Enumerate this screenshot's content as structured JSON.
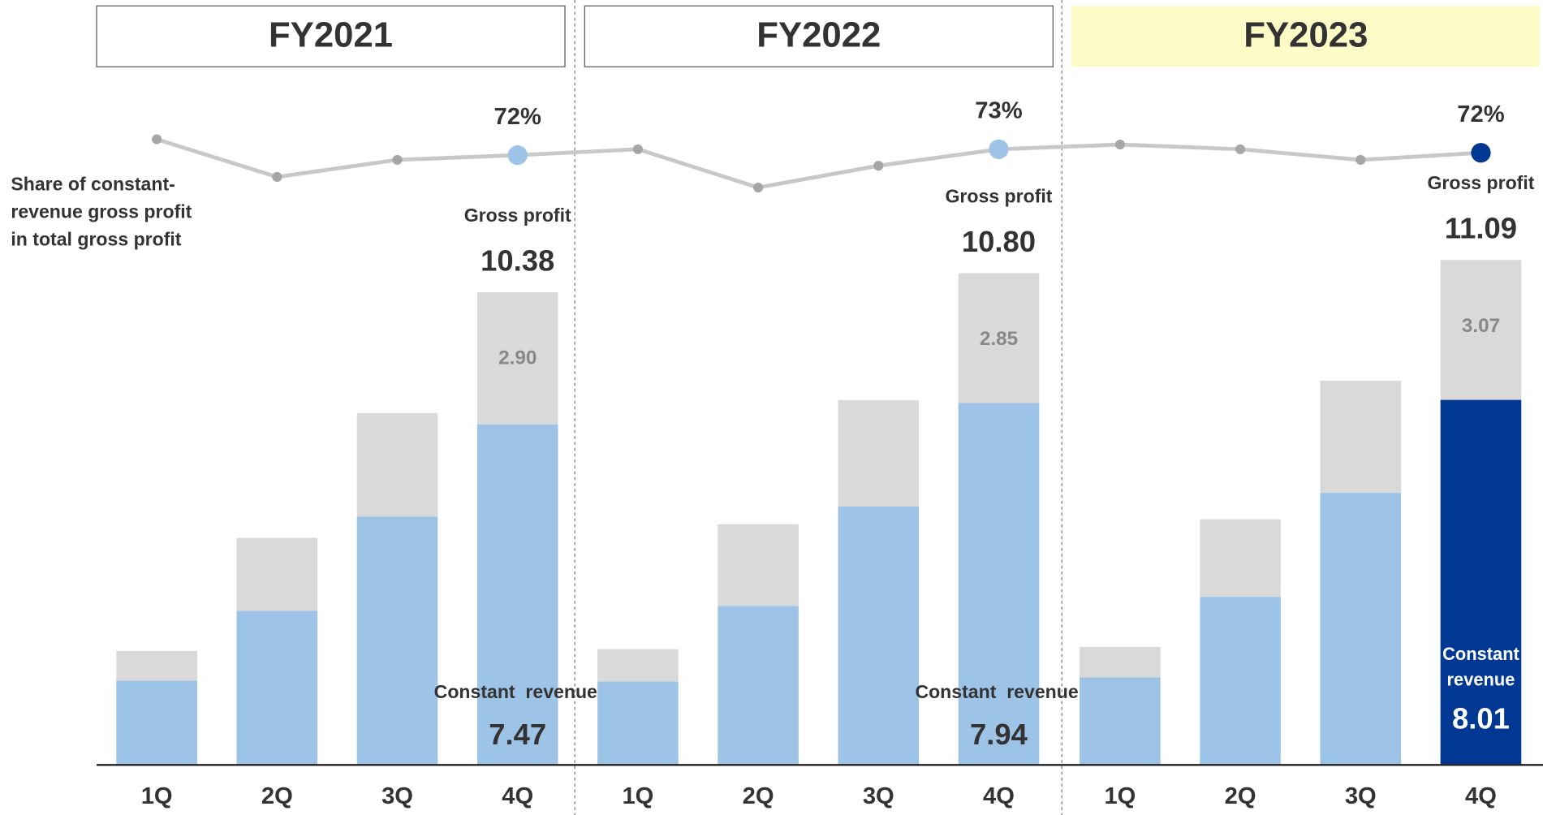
{
  "chart_data": {
    "type": "bar",
    "stacked": true,
    "groups": [
      "FY2021",
      "FY2022",
      "FY2023"
    ],
    "highlight_group": 2,
    "highlight_group_color": "#fdfbc6",
    "categories": [
      "1Q",
      "2Q",
      "3Q",
      "4Q",
      "1Q",
      "2Q",
      "3Q",
      "4Q",
      "1Q",
      "2Q",
      "3Q",
      "4Q"
    ],
    "ylim": [
      0,
      12
    ],
    "series": [
      {
        "name": "Constant  revenue",
        "color": "#9dc3e6",
        "highlight_color": "#003893",
        "values": [
          1.85,
          3.38,
          5.45,
          7.47,
          1.83,
          3.49,
          5.67,
          7.94,
          1.92,
          3.69,
          5.97,
          8.01
        ]
      },
      {
        "color": "#d9d9d9",
        "values": [
          0.65,
          1.6,
          2.27,
          2.9,
          0.71,
          1.79,
          2.33,
          2.85,
          0.67,
          1.7,
          2.46,
          3.07
        ],
        "value_labels": [
          null,
          null,
          null,
          "2.90",
          null,
          null,
          null,
          "2.85",
          null,
          null,
          null,
          "3.07"
        ]
      }
    ],
    "totals": {
      "label": "Gross profit",
      "values": [
        10.38,
        10.8,
        11.09
      ],
      "value_labels": [
        "10.38",
        "10.80",
        "11.09"
      ]
    },
    "line": {
      "name": [
        "Share of constant-",
        "revenue gross profit",
        "in total gross profit"
      ],
      "color": "#c8c8c8",
      "marker_color": "#a6a6a6",
      "y2lim": [
        60,
        80
      ],
      "values": [
        74.7,
        68.3,
        71.2,
        72,
        73,
        66.5,
        70.2,
        73,
        73.8,
        73,
        71.2,
        72.4
      ],
      "value_labels": [
        null,
        null,
        null,
        "72%",
        null,
        null,
        null,
        "73%",
        null,
        null,
        null,
        "72%"
      ]
    }
  }
}
